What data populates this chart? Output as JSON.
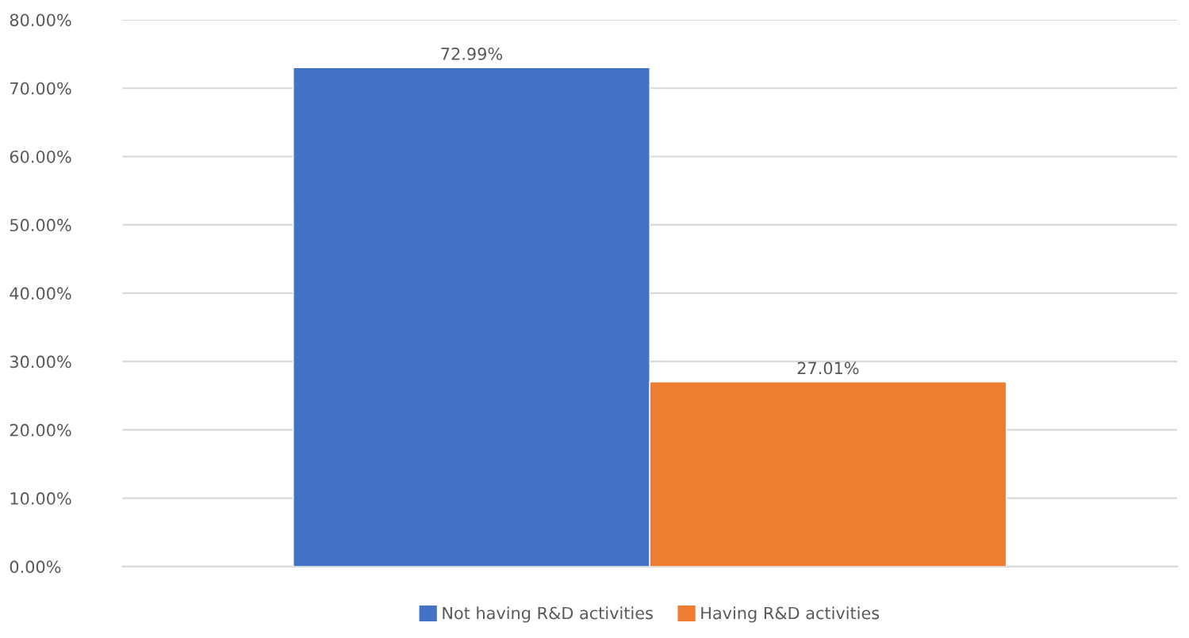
{
  "chart_data": {
    "type": "bar",
    "categories": [
      null
    ],
    "series": [
      {
        "name": "Not having R&D activities",
        "color": "#4472c4",
        "values": [
          72.99
        ],
        "value_labels": [
          "72.99%"
        ]
      },
      {
        "name": "Having R&D activities",
        "color": "#ed7d31",
        "values": [
          27.01
        ],
        "value_labels": [
          "27.01%"
        ]
      }
    ],
    "ylim": [
      0,
      80
    ],
    "yticks": [
      {
        "value": 0,
        "label": "0.00%"
      },
      {
        "value": 10,
        "label": "10.00%"
      },
      {
        "value": 20,
        "label": "20.00%"
      },
      {
        "value": 30,
        "label": "30.00%"
      },
      {
        "value": 40,
        "label": "40.00%"
      },
      {
        "value": 50,
        "label": "50.00%"
      },
      {
        "value": 60,
        "label": "60.00%"
      },
      {
        "value": 70,
        "label": "70.00%"
      },
      {
        "value": 80,
        "label": "80.00%"
      }
    ],
    "grid": "y",
    "legend": "bottom"
  }
}
